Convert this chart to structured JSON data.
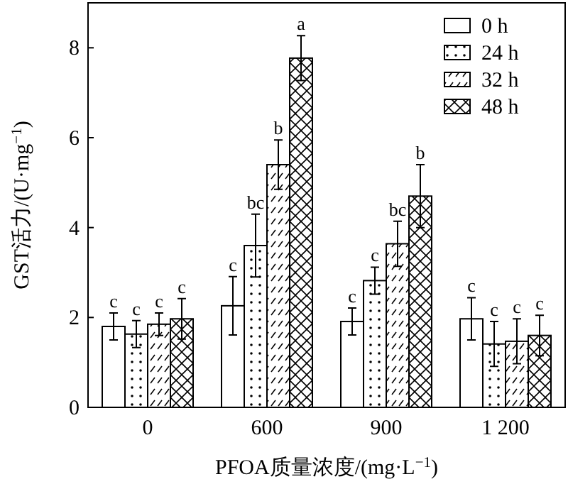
{
  "chart_data": {
    "type": "bar",
    "xlabel": "PFOA质量浓度/(mg·L$^{−1}$)",
    "ylabel": "GST活力/(U·mg$^{−1}$)",
    "categories": [
      "0",
      "600",
      "900",
      "1 200"
    ],
    "series": [
      {
        "name": "0 h",
        "values": [
          1.8,
          2.26,
          1.91,
          1.97
        ],
        "errors": [
          0.3,
          0.65,
          0.3,
          0.47
        ],
        "value_labels": [
          "c",
          "c",
          "c",
          "c"
        ]
      },
      {
        "name": "24 h",
        "values": [
          1.63,
          3.6,
          2.82,
          1.41
        ],
        "errors": [
          0.3,
          0.7,
          0.3,
          0.5
        ],
        "value_labels": [
          "c",
          "bc",
          "c",
          "c"
        ]
      },
      {
        "name": "32 h",
        "values": [
          1.85,
          5.4,
          3.64,
          1.47
        ],
        "errors": [
          0.25,
          0.55,
          0.5,
          0.5
        ],
        "value_labels": [
          "c",
          "b",
          "bc",
          "c"
        ]
      },
      {
        "name": "48 h",
        "values": [
          1.97,
          7.77,
          4.7,
          1.6
        ],
        "errors": [
          0.45,
          0.5,
          0.7,
          0.45
        ],
        "value_labels": [
          "c",
          "a",
          "b",
          "c"
        ]
      }
    ],
    "ylim": [
      0,
      9
    ],
    "yticks": [
      0,
      2,
      4,
      6,
      8
    ],
    "legend": "top right",
    "grid": false
  }
}
